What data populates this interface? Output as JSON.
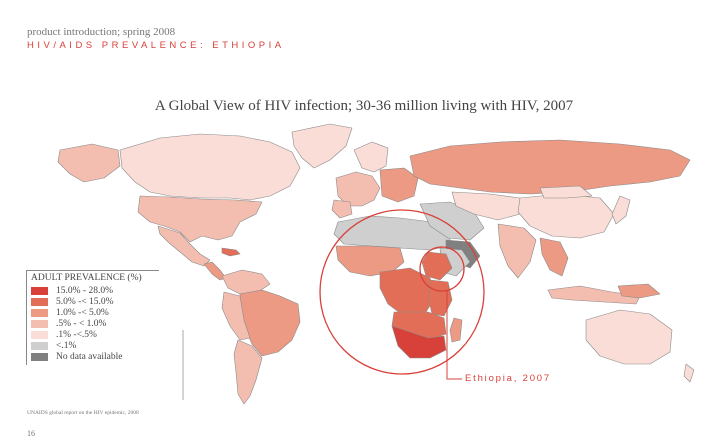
{
  "header": {
    "subtitle": "product introduction; spring 2008",
    "section_title": "HIV/AIDS PREVALENCE: ETHIOPIA"
  },
  "map": {
    "title": "A Global View of HIV infection; 30-36 million living with HIV, 2007",
    "highlight_region": "Sub-Saharan Africa",
    "highlight_country": "Ethiopia",
    "callout_label": "Ethiopia, 2007"
  },
  "legend": {
    "title": "ADULT PREVALENCE (%)",
    "items": [
      {
        "label": "15.0% - 28.0%",
        "color": "#d8413a"
      },
      {
        "label": "5.0% -< 15.0%",
        "color": "#e36e58"
      },
      {
        "label": "1.0% -< 5.0%",
        "color": "#ec9a84"
      },
      {
        "label": ".5% - < 1.0%",
        "color": "#f3bdb0"
      },
      {
        "label": ".1% -<.5%",
        "color": "#f9ddd6"
      },
      {
        "label": "<.1%",
        "color": "#cfcfcf"
      },
      {
        "label": "No data available",
        "color": "#808080"
      }
    ]
  },
  "footer": {
    "source": "UNAIDS global report on the HIV epidemic, 2008",
    "page_number": "16"
  },
  "colors": {
    "accent": "#d8413a",
    "highest": "#d8413a",
    "high": "#e36e58",
    "mid": "#ec9a84",
    "low": "#f3bdb0",
    "lowest": "#f9ddd6",
    "minimal": "#cfcfcf",
    "nodata": "#808080",
    "border": "#8a8a8a"
  }
}
